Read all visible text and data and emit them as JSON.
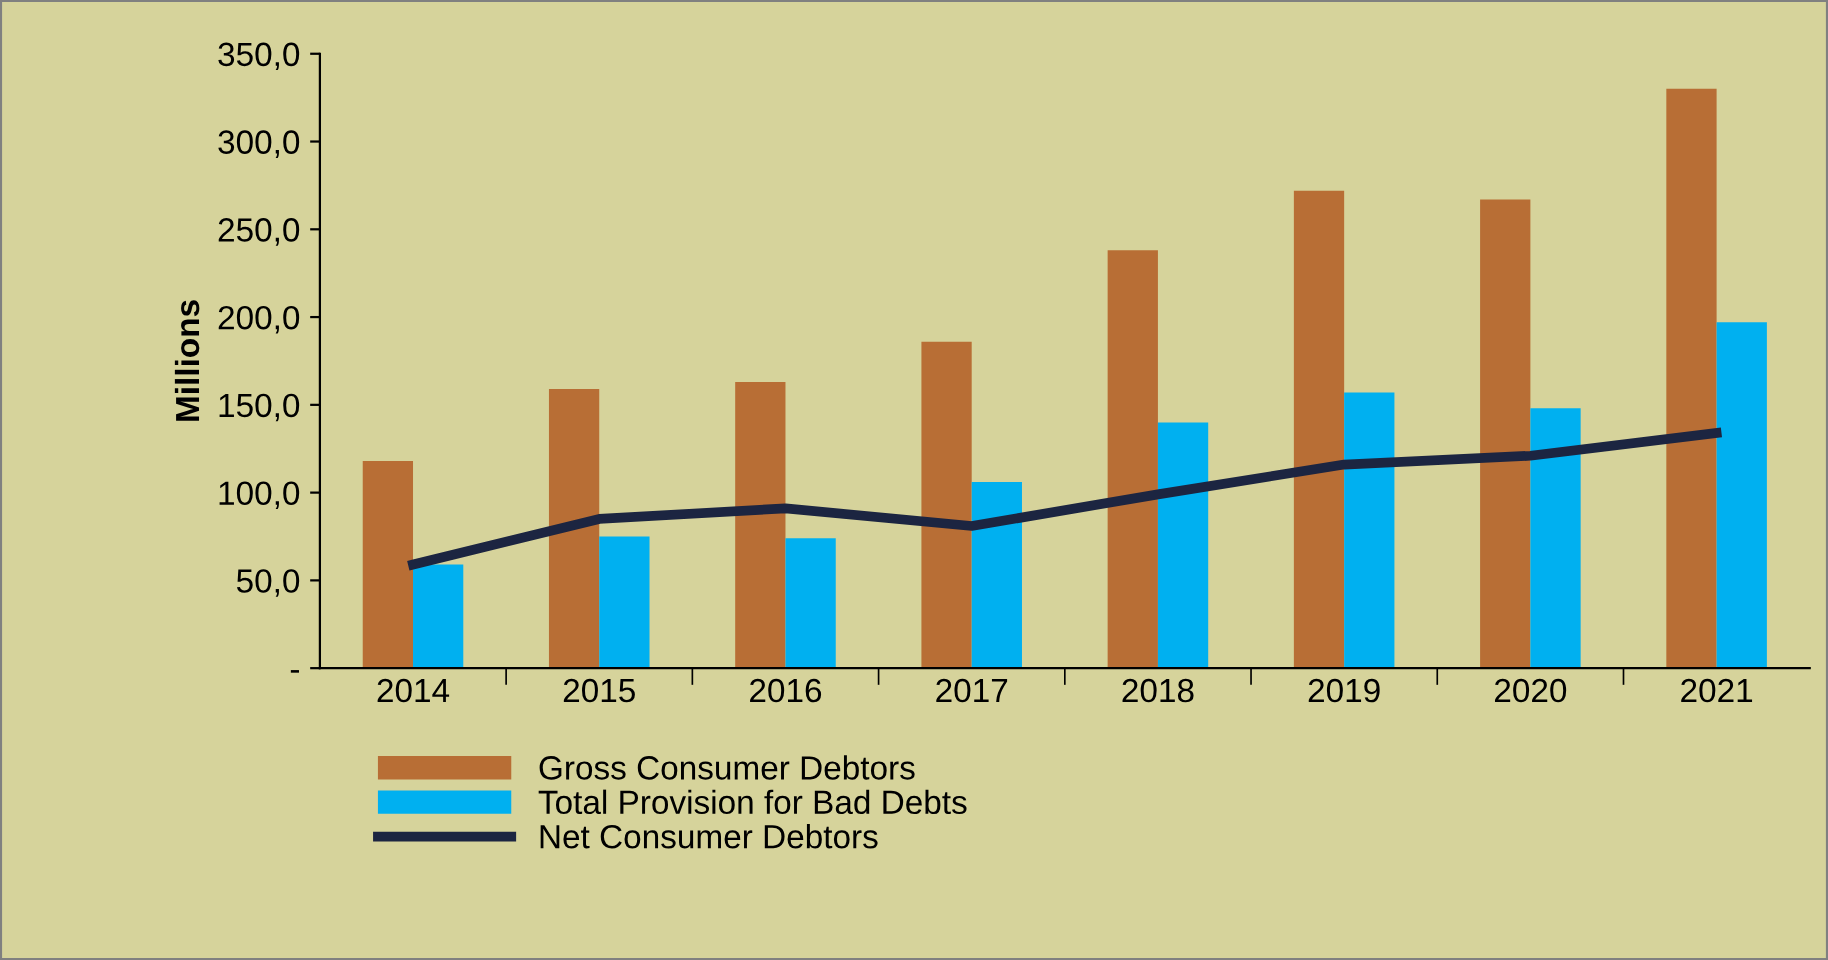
{
  "chart_data": {
    "type": "bar",
    "ylabel": "Millions",
    "categories": [
      "2014",
      "2015",
      "2016",
      "2017",
      "2018",
      "2019",
      "2020",
      "2021"
    ],
    "series": [
      {
        "name": "Gross Consumer Debtors",
        "color": "#b86e35",
        "values": [
          118,
          159,
          163,
          186,
          238,
          272,
          267,
          330
        ]
      },
      {
        "name": "Total Provision for Bad Debts",
        "color": "#00b0f0",
        "values": [
          59,
          75,
          74,
          106,
          140,
          157,
          148,
          197
        ]
      },
      {
        "name": "Net Consumer Debtors",
        "type": "line",
        "color": "#1c2541",
        "values": [
          59,
          85,
          91,
          81,
          99,
          116,
          121,
          134
        ]
      }
    ],
    "ylim": [
      0,
      350
    ],
    "yticks": [
      {
        "value": 0,
        "label": "-"
      },
      {
        "value": 50,
        "label": "50,0"
      },
      {
        "value": 100,
        "label": "100,0"
      },
      {
        "value": 150,
        "label": "150,0"
      },
      {
        "value": 200,
        "label": "200,0"
      },
      {
        "value": 250,
        "label": "250,0"
      },
      {
        "value": 300,
        "label": "300,0"
      },
      {
        "value": 350,
        "label": "350,0"
      }
    ],
    "grid": false,
    "legend": "bottom left",
    "marker": "none",
    "line_style": "solid"
  }
}
